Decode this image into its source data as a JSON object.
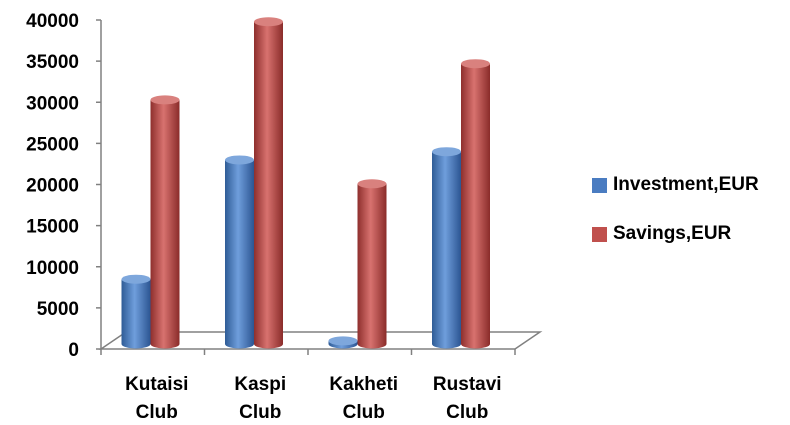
{
  "chart_data": {
    "type": "bar",
    "categories": [
      [
        "Kutaisi",
        "Club"
      ],
      [
        "Kaspi",
        "Club"
      ],
      [
        "Kakheti",
        "Club"
      ],
      [
        "Rustavi",
        "Club"
      ]
    ],
    "series": [
      {
        "name": "Investment,EUR",
        "color": "#4a7cc1",
        "values": [
          8000,
          22500,
          500,
          23500
        ]
      },
      {
        "name": "Savings,EUR",
        "color": "#c0504d",
        "values": [
          29800,
          39300,
          19600,
          34200
        ]
      }
    ],
    "yticks": [
      "0",
      "5000",
      "10000",
      "15000",
      "20000",
      "25000",
      "30000",
      "35000",
      "40000"
    ],
    "ylim": [
      0,
      40000
    ],
    "legend": "right",
    "grid": false,
    "style": "3d-cylinder"
  }
}
